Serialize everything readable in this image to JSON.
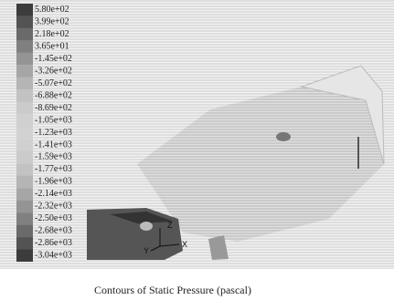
{
  "legend": {
    "labels": [
      "5.80e+02",
      "3.99e+02",
      "2.18e+02",
      "3.65e+01",
      "-1.45e+02",
      "-3.26e+02",
      "-5.07e+02",
      "-6.88e+02",
      "-8.69e+02",
      "-1.05e+03",
      "-1.23e+03",
      "-1.41e+03",
      "-1.59e+03",
      "-1.77e+03",
      "-1.96e+03",
      "-2.14e+03",
      "-2.32e+03",
      "-2.50e+03",
      "-2.68e+03",
      "-2.86e+03",
      "-3.04e+03"
    ]
  },
  "axes": {
    "z": "Z",
    "y": "Y",
    "x": "X"
  },
  "caption": "Contours of Static Pressure (pascal)"
}
